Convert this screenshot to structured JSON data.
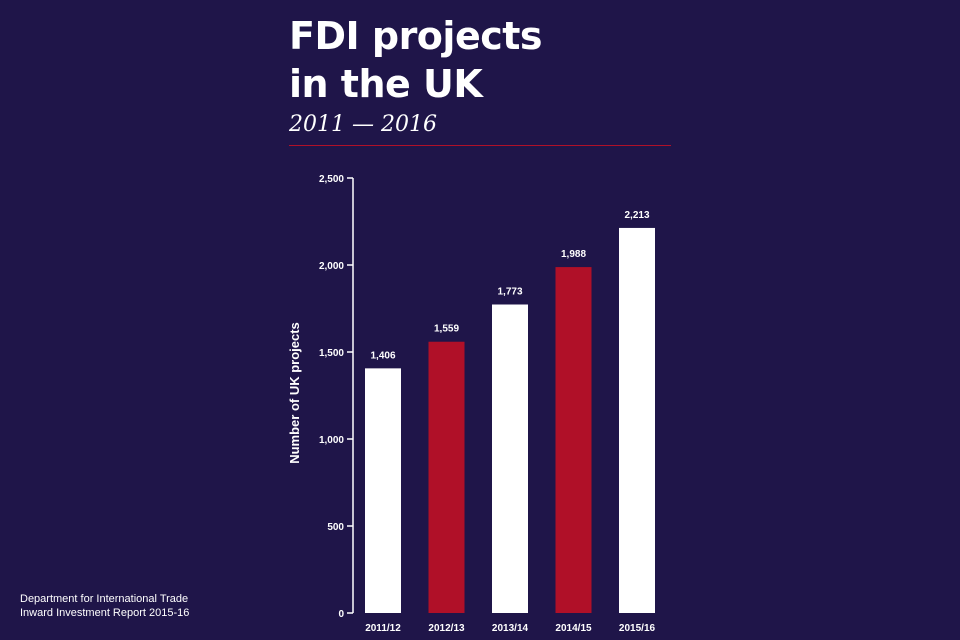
{
  "header": {
    "title_line1": "FDI projects",
    "title_line2": "in the UK",
    "subtitle": "2011 — 2016"
  },
  "footer": {
    "line1": "Department for International Trade",
    "line2": "Inward Investment Report 2015-16"
  },
  "colors": {
    "background": "#1f1549",
    "bar_white": "#ffffff",
    "bar_red": "#b01028"
  },
  "chart_data": {
    "type": "bar",
    "title": "FDI projects in the UK",
    "subtitle": "2011 — 2016",
    "xlabel": "",
    "ylabel": "Number of UK projects",
    "categories": [
      "2011/12",
      "2012/13",
      "2013/14",
      "2014/15",
      "2015/16"
    ],
    "values": [
      1406,
      1559,
      1773,
      1988,
      2213
    ],
    "value_labels": [
      "1,406",
      "1,559",
      "1,773",
      "1,988",
      "2,213"
    ],
    "bar_colors": [
      "#ffffff",
      "#b01028",
      "#ffffff",
      "#b01028",
      "#ffffff"
    ],
    "ylim": [
      0,
      2500
    ],
    "yticks": [
      0,
      500,
      1000,
      1500,
      2000,
      2500
    ],
    "ytick_labels": [
      "0",
      "500",
      "1,000",
      "1,500",
      "2,000",
      "2,500"
    ],
    "grid": false,
    "legend": "none"
  }
}
